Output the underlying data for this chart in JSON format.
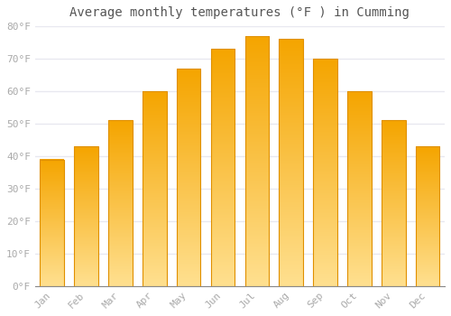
{
  "title": "Average monthly temperatures (°F ) in Cumming",
  "months": [
    "Jan",
    "Feb",
    "Mar",
    "Apr",
    "May",
    "Jun",
    "Jul",
    "Aug",
    "Sep",
    "Oct",
    "Nov",
    "Dec"
  ],
  "values": [
    39,
    43,
    51,
    60,
    67,
    73,
    77,
    76,
    70,
    60,
    51,
    43
  ],
  "bar_color_top": "#F5A500",
  "bar_color_bottom": "#FFE090",
  "bar_edge_color": "#E09000",
  "ylim": [
    0,
    80
  ],
  "yticks": [
    0,
    10,
    20,
    30,
    40,
    50,
    60,
    70,
    80
  ],
  "ytick_labels": [
    "0°F",
    "10°F",
    "20°F",
    "30°F",
    "40°F",
    "50°F",
    "60°F",
    "70°F",
    "80°F"
  ],
  "background_color": "#ffffff",
  "grid_color": "#e8e8f0",
  "title_fontsize": 10,
  "tick_fontsize": 8,
  "bar_width": 0.7
}
